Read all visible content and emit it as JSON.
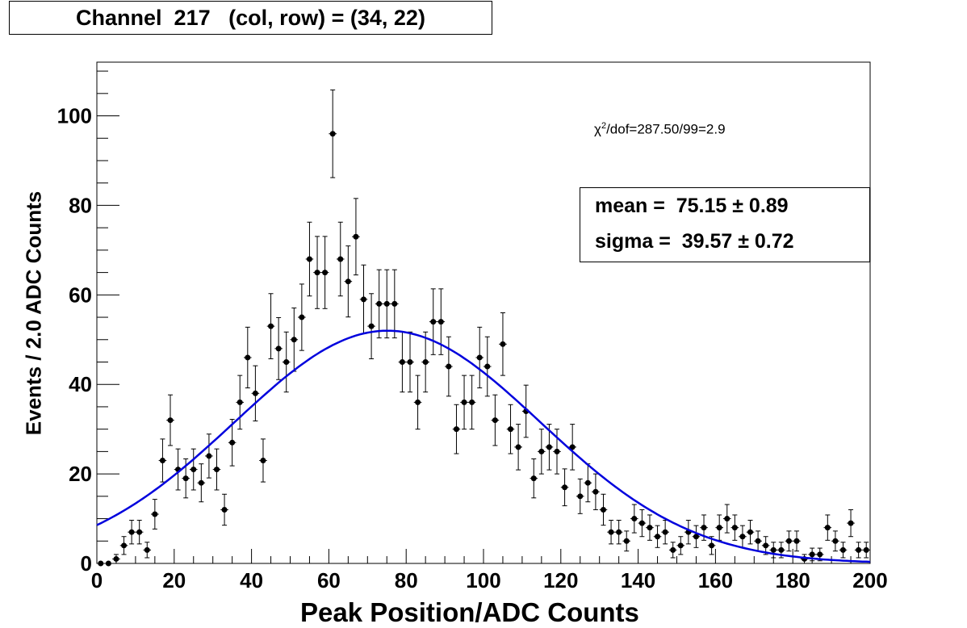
{
  "chart_data": {
    "type": "scatter",
    "title": "Channel  217   (col, row) = (34, 22)",
    "xlabel": "Peak Position/ADC Counts",
    "ylabel": "Events / 2.0 ADC Counts",
    "xlim": [
      0,
      200
    ],
    "ylim": [
      0,
      112
    ],
    "x_ticks": [
      0,
      20,
      40,
      60,
      80,
      100,
      120,
      140,
      160,
      180,
      200
    ],
    "y_ticks": [
      0,
      20,
      40,
      60,
      80,
      100
    ],
    "grid": false,
    "bin_width": 2,
    "series": [
      {
        "kind": "histogram_points",
        "color": "#000000",
        "x": [
          1,
          3,
          5,
          7,
          9,
          11,
          13,
          15,
          17,
          19,
          21,
          23,
          25,
          27,
          29,
          31,
          33,
          35,
          37,
          39,
          41,
          43,
          45,
          47,
          49,
          51,
          53,
          55,
          57,
          59,
          61,
          63,
          65,
          67,
          69,
          71,
          73,
          75,
          77,
          79,
          81,
          83,
          85,
          87,
          89,
          91,
          93,
          95,
          97,
          99,
          101,
          103,
          105,
          107,
          109,
          111,
          113,
          115,
          117,
          119,
          121,
          123,
          125,
          127,
          129,
          131,
          133,
          135,
          137,
          139,
          141,
          143,
          145,
          147,
          149,
          151,
          153,
          155,
          157,
          159,
          161,
          163,
          165,
          167,
          169,
          171,
          173,
          175,
          177,
          179,
          181,
          183,
          185,
          187,
          189,
          191,
          193,
          195,
          197,
          199
        ],
        "y": [
          0,
          0,
          1,
          4,
          7,
          7,
          3,
          11,
          23,
          32,
          21,
          19,
          21,
          18,
          24,
          21,
          12,
          27,
          36,
          46,
          38,
          23,
          53,
          48,
          45,
          50,
          55,
          68,
          65,
          65,
          96,
          68,
          63,
          73,
          59,
          53,
          58,
          58,
          58,
          45,
          45,
          36,
          45,
          54,
          54,
          44,
          30,
          36,
          36,
          46,
          44,
          32,
          49,
          30,
          26,
          34,
          19,
          25,
          26,
          25,
          17,
          26,
          15,
          18,
          16,
          12,
          7,
          7,
          5,
          10,
          9,
          8,
          6,
          7,
          3,
          4,
          7,
          6,
          8,
          4,
          8,
          10,
          8,
          6,
          7,
          5,
          4,
          3,
          3,
          5,
          5,
          1,
          2,
          2,
          8,
          5,
          3,
          9,
          3,
          3
        ]
      },
      {
        "kind": "gaussian_fit",
        "color": "#0000dd",
        "amplitude": 52,
        "mean": 75.15,
        "sigma": 39.57
      }
    ],
    "annotations": {
      "chi2": "χ2/dof=287.50/99=2.9",
      "mean_label": "mean =  75.15 ± 0.89",
      "sigma_label": "sigma =  39.57 ± 0.72"
    }
  }
}
